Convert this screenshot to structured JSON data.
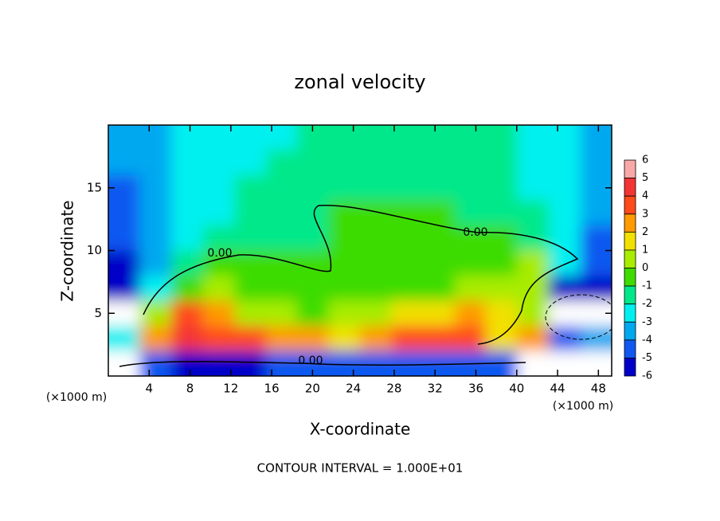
{
  "chart_data": {
    "type": "contour",
    "title": "zonal velocity",
    "x_label": "X-coordinate",
    "y_label": "Z-coordinate",
    "x_unit_labels": [
      "(×1000 m)",
      "(×1000 m)"
    ],
    "footer": "CONTOUR INTERVAL = 1.000E+01",
    "contour_labels": [
      "0.00",
      "0.00",
      "0.00"
    ],
    "xlim": [
      0,
      49.3
    ],
    "ylim": [
      0,
      20
    ],
    "xticks": [
      4,
      8,
      12,
      16,
      20,
      24,
      28,
      32,
      36,
      40,
      44,
      48
    ],
    "yticks": [
      5,
      10,
      15
    ],
    "colorbar": {
      "levels": [
        6,
        5,
        4,
        3,
        2,
        1,
        0,
        -1,
        -2,
        -3,
        -4,
        -5,
        -6
      ],
      "colors": [
        "#f9a8a8",
        "#f43434",
        "#ff4a1a",
        "#ff9a00",
        "#f2e000",
        "#a8ec00",
        "#3edc00",
        "#00e88a",
        "#00f0f0",
        "#00a8f0",
        "#1058f0",
        "#0000c8",
        "#6a0098"
      ]
    },
    "field_x": [
      1.5,
      4.6,
      7.7,
      10.8,
      13.9,
      17,
      20,
      23.1,
      26.2,
      29.3,
      32.4,
      35.5,
      38.5,
      41.6,
      44.7,
      47.8
    ],
    "field_y": [
      19,
      17,
      15,
      13,
      11,
      9,
      7,
      5,
      3,
      1
    ],
    "field": [
      [
        -3,
        -2.5,
        -2,
        -1.5,
        -1.5,
        -1.2,
        -1,
        -0.8,
        -0.5,
        -0.5,
        -0.6,
        -0.8,
        -1,
        -1.5,
        -2,
        -2.5
      ],
      [
        -3,
        -2.5,
        -2,
        -1.5,
        -1.2,
        -1,
        -0.8,
        -0.5,
        -0.3,
        -0.3,
        -0.4,
        -0.6,
        -0.9,
        -1.5,
        -2,
        -3
      ],
      [
        -3.5,
        -3,
        -2,
        -1.5,
        -1,
        -0.8,
        -0.6,
        -0.4,
        -0.2,
        -0.2,
        -0.3,
        -0.5,
        -0.8,
        -1.2,
        -2,
        -3
      ],
      [
        -3.5,
        -3,
        -2,
        -1.2,
        -0.8,
        -0.6,
        -0.4,
        0.2,
        0.3,
        0.2,
        0,
        -0.3,
        -0.6,
        -1,
        -2,
        -3
      ],
      [
        -4,
        -3,
        -1.5,
        -0.8,
        -0.5,
        -0.3,
        -0.2,
        0.3,
        0.5,
        0.4,
        0.3,
        0.2,
        0.1,
        -0.5,
        -2,
        -3.5
      ],
      [
        -4.5,
        -2.5,
        -0.8,
        0,
        0.2,
        0.2,
        0.1,
        0.4,
        0.5,
        0.5,
        0.5,
        0.4,
        0.8,
        1,
        -1.5,
        -4
      ],
      [
        -5,
        -1.5,
        0.8,
        1,
        0.8,
        0.6,
        0.5,
        0.6,
        0.7,
        0.8,
        0.9,
        1,
        1.5,
        1.5,
        -5,
        -5
      ],
      [
        -7,
        1,
        4,
        3,
        1.5,
        1,
        0.8,
        1,
        1.5,
        2,
        2.5,
        3,
        2,
        1,
        -7,
        -7
      ],
      [
        -2,
        3,
        5,
        4,
        4,
        3,
        3,
        2,
        3,
        4,
        4,
        4,
        2.5,
        3,
        -4,
        -3
      ],
      [
        -7,
        -4,
        -5,
        -5,
        -5,
        -4,
        -4,
        -4,
        -4,
        -4,
        -4,
        -4,
        -4,
        -7,
        -7,
        -7
      ]
    ]
  }
}
